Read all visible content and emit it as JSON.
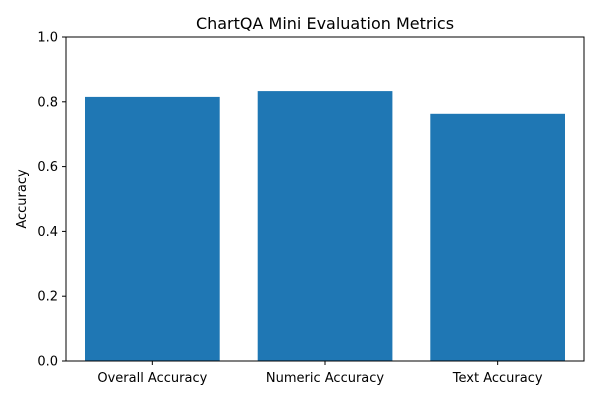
{
  "chart_data": {
    "type": "bar",
    "title": "ChartQA Mini Evaluation Metrics",
    "xlabel": "",
    "ylabel": "Accuracy",
    "categories": [
      "Overall Accuracy",
      "Numeric Accuracy",
      "Text Accuracy"
    ],
    "values": [
      0.815,
      0.833,
      0.763
    ],
    "ylim": [
      0,
      1.0
    ],
    "yticks": [
      0.0,
      0.2,
      0.4,
      0.6,
      0.8,
      1.0
    ],
    "ytick_labels": [
      "0.0",
      "0.2",
      "0.4",
      "0.6",
      "0.8",
      "1.0"
    ],
    "bar_color": "#1f77b4",
    "grid": false,
    "legend": "none"
  }
}
